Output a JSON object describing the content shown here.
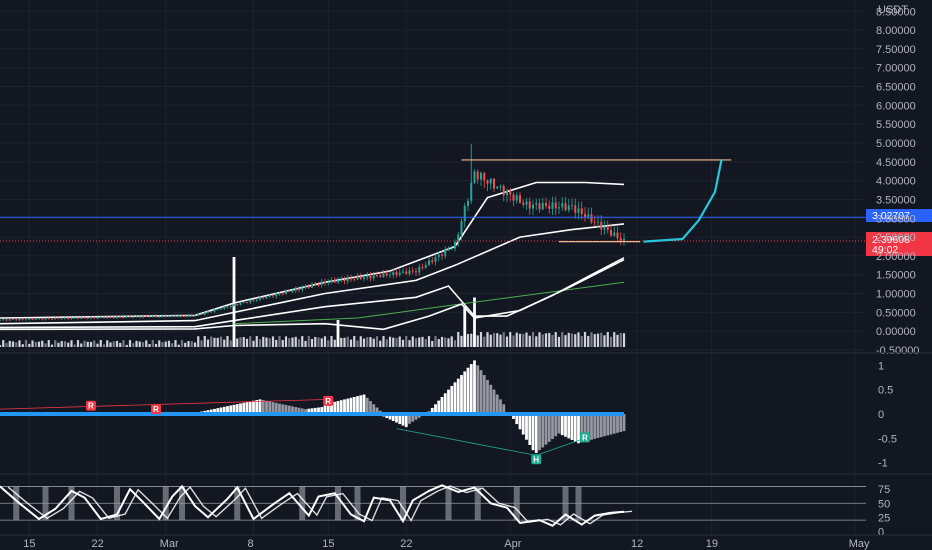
{
  "chart_data": [
    {
      "type": "candlestick",
      "pair": "USDT",
      "y_ticks": [
        "8.50000",
        "8.00000",
        "7.50000",
        "7.00000",
        "6.50000",
        "6.00000",
        "5.50000",
        "5.00000",
        "4.50000",
        "4.00000",
        "3.50000",
        "3.00000",
        "2.50000",
        "2.00000",
        "1.50000",
        "1.00000",
        "0.50000",
        "0.00000",
        "-0.50000"
      ],
      "ylim": [
        -0.5,
        8.8
      ],
      "horizontal_line_price": "3.02707",
      "last_price": "2.39608",
      "countdown": "49:02",
      "resistance_price": 4.55,
      "support_price": 2.38,
      "peak_high": 4.98,
      "segments": [
        {
          "from": 0,
          "to": 60,
          "start": 0.3,
          "end": 0.42
        },
        {
          "from": 60,
          "to": 72,
          "start": 0.42,
          "end": 0.7
        },
        {
          "from": 72,
          "to": 100,
          "start": 0.7,
          "end": 1.3
        },
        {
          "from": 100,
          "to": 128,
          "start": 1.3,
          "end": 1.6
        },
        {
          "from": 128,
          "to": 140,
          "start": 1.6,
          "end": 2.3
        },
        {
          "from": 140,
          "to": 146,
          "start": 2.3,
          "end": 4.2
        },
        {
          "from": 146,
          "to": 162,
          "start": 4.2,
          "end": 3.35
        },
        {
          "from": 162,
          "to": 176,
          "start": 3.35,
          "end": 3.3
        },
        {
          "from": 176,
          "to": 192,
          "start": 3.3,
          "end": 2.38
        }
      ],
      "outer_bands": [
        {
          "name": "upper",
          "points": [
            [
              0,
              0.35
            ],
            [
              60,
              0.42
            ],
            [
              72,
              0.75
            ],
            [
              100,
              1.3
            ],
            [
              120,
              1.6
            ],
            [
              140,
              2.25
            ],
            [
              150,
              3.55
            ],
            [
              165,
              3.95
            ],
            [
              180,
              3.95
            ],
            [
              192,
              3.9
            ]
          ]
        },
        {
          "name": "mid",
          "points": [
            [
              0,
              0.2
            ],
            [
              60,
              0.28
            ],
            [
              72,
              0.5
            ],
            [
              100,
              1.0
            ],
            [
              128,
              1.35
            ],
            [
              140,
              1.75
            ],
            [
              160,
              2.5
            ],
            [
              176,
              2.7
            ],
            [
              192,
              2.85
            ]
          ]
        },
        {
          "name": "lower",
          "points": [
            [
              0,
              0.1
            ],
            [
              60,
              0.12
            ],
            [
              72,
              0.28
            ],
            [
              100,
              0.65
            ],
            [
              128,
              0.9
            ],
            [
              138,
              1.2
            ],
            [
              146,
              0.4
            ],
            [
              156,
              0.4
            ],
            [
              170,
              0.95
            ],
            [
              182,
              1.5
            ],
            [
              192,
              1.95
            ]
          ]
        },
        {
          "name": "lower2",
          "points": [
            [
              0,
              0.05
            ],
            [
              60,
              0.06
            ],
            [
              72,
              0.15
            ],
            [
              100,
              0.2
            ],
            [
              118,
              0.05
            ],
            [
              132,
              0.4
            ],
            [
              142,
              0.72
            ],
            [
              146,
              0.35
            ],
            [
              160,
              0.55
            ],
            [
              176,
              1.2
            ],
            [
              192,
              1.9
            ]
          ]
        }
      ],
      "long_ma": {
        "points": [
          [
            72,
            0.2
          ],
          [
            110,
            0.35
          ],
          [
            140,
            0.7
          ],
          [
            192,
            1.3
          ]
        ]
      },
      "projection": {
        "points": [
          [
            198,
            2.38
          ],
          [
            210,
            2.45
          ],
          [
            215,
            2.95
          ],
          [
            220,
            3.7
          ],
          [
            222,
            4.55
          ]
        ]
      },
      "volume_spikes": [
        {
          "i": 72,
          "h": 1.0
        },
        {
          "i": 104,
          "h": 0.3
        },
        {
          "i": 143,
          "h": 0.45
        },
        {
          "i": 146,
          "h": 0.55
        }
      ],
      "x_ticks": [
        {
          "label": "15",
          "i": 9
        },
        {
          "label": "22",
          "i": 30
        },
        {
          "label": "Mar",
          "i": 51
        },
        {
          "label": "8",
          "i": 78
        },
        {
          "label": "15",
          "i": 101
        },
        {
          "label": "22",
          "i": 125
        },
        {
          "label": "Apr",
          "i": 157
        },
        {
          "label": "12",
          "i": 196
        },
        {
          "label": "19",
          "i": 219
        },
        {
          "label": "May",
          "i": 263
        }
      ]
    },
    {
      "type": "histogram",
      "y_ticks": [
        "1",
        "0.5",
        "0",
        "-0.5",
        "-1"
      ],
      "ylim": [
        -1.15,
        1.15
      ],
      "segments": [
        {
          "from": 0,
          "to": 62,
          "start": 0.01,
          "end": 0.0
        },
        {
          "from": 62,
          "to": 80,
          "start": 0.05,
          "end": 0.3
        },
        {
          "from": 80,
          "to": 94,
          "start": 0.3,
          "end": 0.1
        },
        {
          "from": 94,
          "to": 100,
          "start": 0.1,
          "end": 0.15
        },
        {
          "from": 100,
          "to": 112,
          "start": 0.2,
          "end": 0.4
        },
        {
          "from": 112,
          "to": 118,
          "start": 0.4,
          "end": 0.0
        },
        {
          "from": 118,
          "to": 126,
          "start": -0.05,
          "end": -0.3
        },
        {
          "from": 126,
          "to": 132,
          "start": -0.2,
          "end": 0.05
        },
        {
          "from": 132,
          "to": 146,
          "start": 0.05,
          "end": 1.1
        },
        {
          "from": 146,
          "to": 156,
          "start": 1.1,
          "end": 0.1
        },
        {
          "from": 156,
          "to": 158,
          "start": 0.0,
          "end": 0.0
        },
        {
          "from": 158,
          "to": 165,
          "start": -0.1,
          "end": -0.85
        },
        {
          "from": 165,
          "to": 172,
          "start": -0.8,
          "end": -0.4
        },
        {
          "from": 172,
          "to": 178,
          "start": -0.4,
          "end": -0.6
        },
        {
          "from": 178,
          "to": 192,
          "start": -0.6,
          "end": -0.35
        }
      ],
      "markers": [
        {
          "text": "R",
          "i": 28,
          "v": 0.15,
          "color": "#f23645"
        },
        {
          "text": "R",
          "i": 48,
          "v": 0.08,
          "color": "#f23645"
        },
        {
          "text": "R",
          "i": 101,
          "v": 0.25,
          "color": "#f23645"
        },
        {
          "text": "H",
          "i": 165,
          "v": -0.95,
          "color": "#22ab94"
        },
        {
          "text": "R",
          "i": 180,
          "v": -0.5,
          "color": "#22ab94"
        }
      ]
    },
    {
      "type": "line",
      "y_ticks": [
        "75",
        "50",
        "25",
        "0"
      ],
      "ylim": [
        -3,
        95
      ],
      "levels": [
        80,
        50,
        20
      ],
      "k_points": [
        [
          0,
          80
        ],
        [
          6,
          50
        ],
        [
          12,
          22
        ],
        [
          17,
          40
        ],
        [
          22,
          72
        ],
        [
          26,
          60
        ],
        [
          31,
          22
        ],
        [
          36,
          30
        ],
        [
          40,
          75
        ],
        [
          44,
          52
        ],
        [
          49,
          22
        ],
        [
          53,
          62
        ],
        [
          56,
          80
        ],
        [
          60,
          45
        ],
        [
          64,
          25
        ],
        [
          70,
          58
        ],
        [
          73,
          78
        ],
        [
          78,
          22
        ],
        [
          84,
          48
        ],
        [
          89,
          68
        ],
        [
          95,
          28
        ],
        [
          98,
          62
        ],
        [
          103,
          68
        ],
        [
          108,
          30
        ],
        [
          112,
          18
        ],
        [
          115,
          60
        ],
        [
          120,
          55
        ],
        [
          124,
          18
        ],
        [
          127,
          55
        ],
        [
          132,
          72
        ],
        [
          136,
          82
        ],
        [
          141,
          70
        ],
        [
          146,
          78
        ],
        [
          151,
          50
        ],
        [
          156,
          42
        ],
        [
          160,
          15
        ],
        [
          166,
          20
        ],
        [
          170,
          10
        ],
        [
          174,
          30
        ],
        [
          179,
          12
        ],
        [
          183,
          28
        ],
        [
          188,
          33
        ],
        [
          192,
          35
        ]
      ],
      "shaded_idx": [
        5,
        14,
        22,
        36,
        51,
        56,
        73,
        93,
        104,
        110,
        124,
        138,
        147,
        159,
        174,
        178
      ]
    }
  ]
}
